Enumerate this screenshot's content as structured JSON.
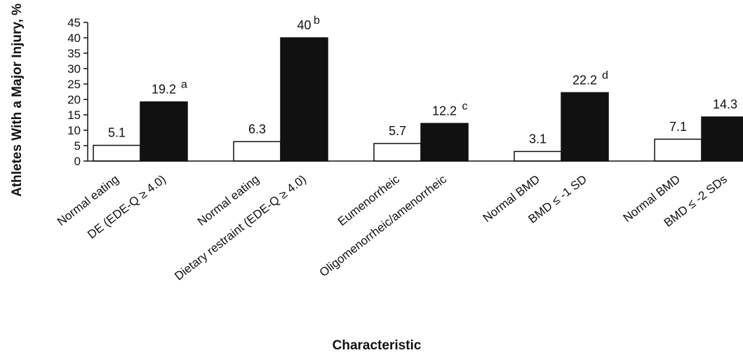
{
  "chart_data": {
    "type": "bar",
    "title": "",
    "xlabel": "Characteristic",
    "ylabel": "Athletes With a Major Injury, %",
    "ylim": [
      0,
      45
    ],
    "yticks": [
      "0",
      "5",
      "10",
      "15",
      "20",
      "25",
      "30",
      "35",
      "40",
      "45"
    ],
    "grid": false,
    "legend": "none",
    "groups": [
      {
        "bars": [
          {
            "label": "Normal eating",
            "value": 5.1,
            "value_text": "5.1",
            "superscript": "",
            "fill": "white"
          },
          {
            "label": "DE (EDE-Q ≥ 4.0)",
            "value": 19.2,
            "value_text": "19.2",
            "superscript": "a",
            "fill": "black"
          }
        ]
      },
      {
        "bars": [
          {
            "label": "Normal eating",
            "value": 6.3,
            "value_text": "6.3",
            "superscript": "",
            "fill": "white"
          },
          {
            "label": "Dietary restraint (EDE-Q ≥ 4.0)",
            "value": 40,
            "value_text": "40",
            "superscript": "b",
            "fill": "black"
          }
        ]
      },
      {
        "bars": [
          {
            "label": "Eumenorrheic",
            "value": 5.7,
            "value_text": "5.7",
            "superscript": "",
            "fill": "white"
          },
          {
            "label": "Oligomenorrheic/amenorrheic",
            "value": 12.2,
            "value_text": "12.2",
            "superscript": "c",
            "fill": "black"
          }
        ]
      },
      {
        "bars": [
          {
            "label": "Normal BMD",
            "value": 3.1,
            "value_text": "3.1",
            "superscript": "",
            "fill": "white"
          },
          {
            "label": "BMD ≤ -1 SD",
            "value": 22.2,
            "value_text": "22.2",
            "superscript": "d",
            "fill": "black"
          }
        ]
      },
      {
        "bars": [
          {
            "label": "Normal BMD",
            "value": 7.1,
            "value_text": "7.1",
            "superscript": "",
            "fill": "white"
          },
          {
            "label": "BMD ≤ -2 SDs",
            "value": 14.3,
            "value_text": "14.3",
            "superscript": "",
            "fill": "black"
          }
        ]
      }
    ],
    "colors": {
      "white_bar": "#ffffff",
      "black_bar": "#111111",
      "axis": "#111111"
    }
  }
}
